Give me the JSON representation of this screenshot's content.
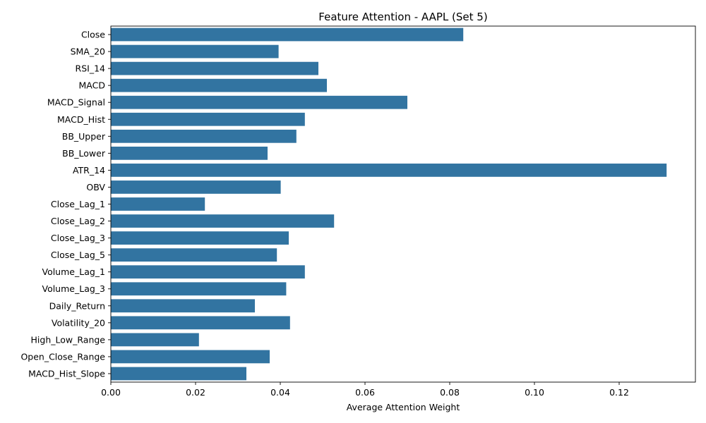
{
  "chart_data": {
    "type": "bar",
    "orientation": "horizontal",
    "title": "Feature Attention - AAPL (Set 5)",
    "xlabel": "Average Attention Weight",
    "ylabel": "",
    "xlim": [
      0,
      0.138
    ],
    "xticks": [
      0.0,
      0.02,
      0.04,
      0.06,
      0.08,
      0.1,
      0.12
    ],
    "xtick_labels": [
      "0.00",
      "0.02",
      "0.04",
      "0.06",
      "0.08",
      "0.10",
      "0.12"
    ],
    "bar_color": "#3274a1",
    "grid": false,
    "categories": [
      "Close",
      "SMA_20",
      "RSI_14",
      "MACD",
      "MACD_Signal",
      "MACD_Hist",
      "BB_Upper",
      "BB_Lower",
      "ATR_14",
      "OBV",
      "Close_Lag_1",
      "Close_Lag_2",
      "Close_Lag_3",
      "Close_Lag_5",
      "Volume_Lag_1",
      "Volume_Lag_3",
      "Daily_Return",
      "Volatility_20",
      "High_Low_Range",
      "Open_Close_Range",
      "MACD_Hist_Slope"
    ],
    "values": [
      0.0832,
      0.0396,
      0.049,
      0.051,
      0.07,
      0.0458,
      0.0438,
      0.037,
      0.1312,
      0.0401,
      0.0222,
      0.0527,
      0.042,
      0.0392,
      0.0458,
      0.0414,
      0.034,
      0.0423,
      0.0208,
      0.0375,
      0.032
    ]
  }
}
